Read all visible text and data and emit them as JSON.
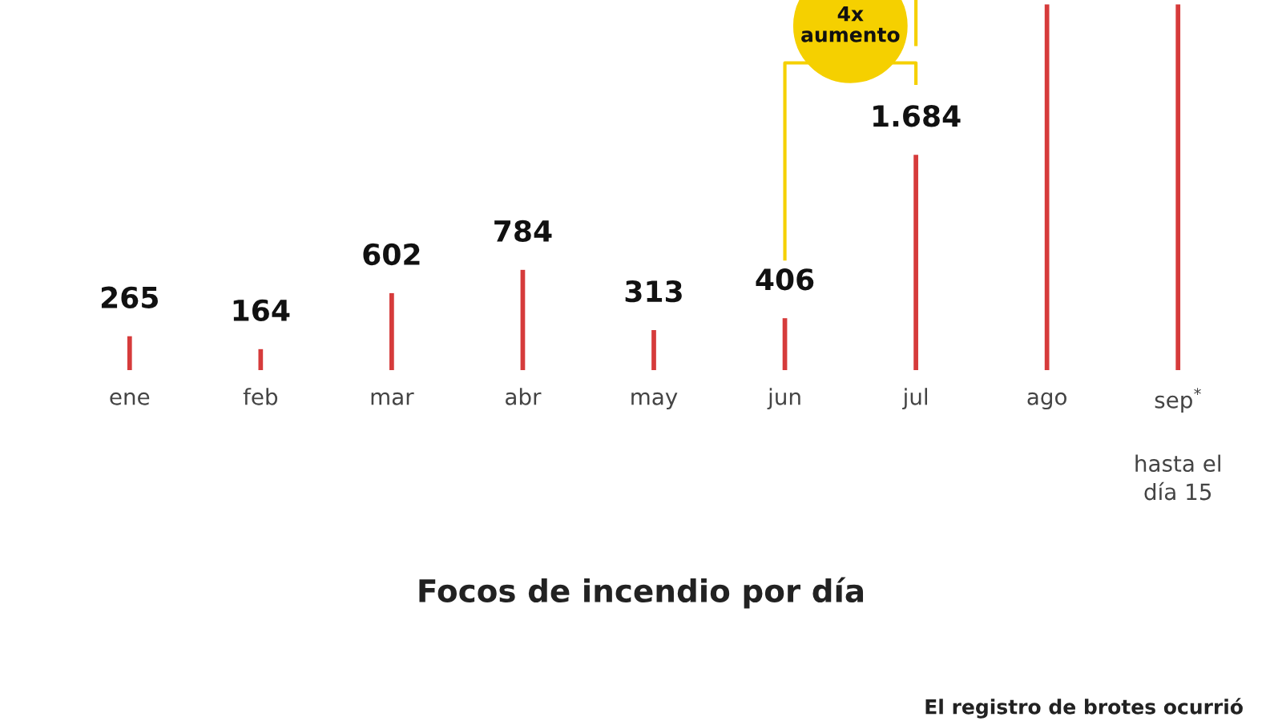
{
  "chart_data": {
    "type": "bar",
    "subtitle": "Focos de incendio por día",
    "categories": [
      "ene",
      "feb",
      "mar",
      "abr",
      "may",
      "jun",
      "jul",
      "ago",
      "sep$^{*}$"
    ],
    "values": [
      265,
      164,
      602,
      784,
      313,
      406,
      1684,
      2860,
      2860
    ],
    "value_labels": [
      "265",
      "164",
      "602",
      "784",
      "313",
      "406",
      "1.684",
      null,
      null
    ],
    "color": "#d63b3b",
    "annotations": [
      "hasta el\ndía 15",
      "4x\naumento",
      "El registro de brotes ocurrió"
    ]
  }
}
